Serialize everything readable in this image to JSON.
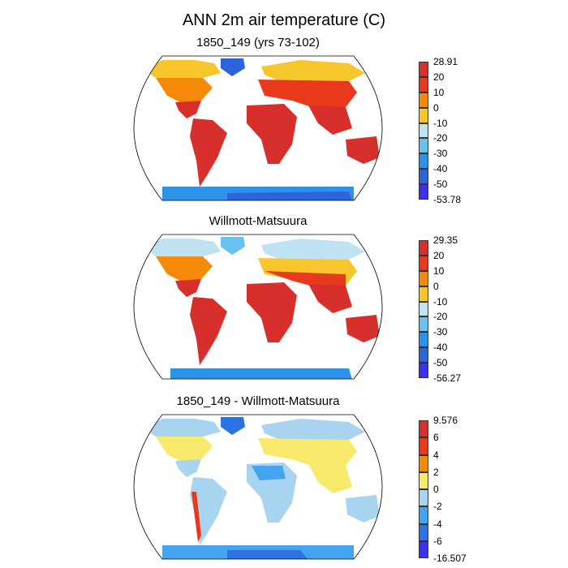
{
  "title": "ANN 2m air temperature (C)",
  "panels": [
    {
      "id": "model",
      "title": "1850_149 (yrs 73-102)",
      "colorbar": {
        "labels": [
          "28.91",
          "20",
          "10",
          "0",
          "-10",
          "-20",
          "-30",
          "-40",
          "-50",
          "-53.78"
        ],
        "colors": [
          "#d7302c",
          "#e8391d",
          "#f58a0a",
          "#f7c62d",
          "#bfe3f2",
          "#68c1ee",
          "#2c92ea",
          "#2e63de",
          "#3b2ff0"
        ]
      }
    },
    {
      "id": "obs",
      "title": "Willmott-Matsuura",
      "colorbar": {
        "labels": [
          "29.35",
          "20",
          "10",
          "0",
          "-10",
          "-20",
          "-30",
          "-40",
          "-50",
          "-56.27"
        ],
        "colors": [
          "#d7302c",
          "#e8391d",
          "#f58a0a",
          "#f7c62d",
          "#bfe3f2",
          "#68c1ee",
          "#2c92ea",
          "#2e63de",
          "#3b2ff0"
        ]
      }
    },
    {
      "id": "diff",
      "title": "1850_149 - Willmott-Matsuura",
      "colorbar": {
        "labels": [
          "9.576",
          "6",
          "4",
          "2",
          "0",
          "-2",
          "-4",
          "-6",
          "-16.507"
        ],
        "colors": [
          "#d7302c",
          "#e8391d",
          "#f58a0a",
          "#f7e96b",
          "#a9d4ef",
          "#45a4ef",
          "#2c72e4",
          "#3b2ff0"
        ]
      }
    }
  ],
  "palette": {
    "outline": "#000000",
    "ocean": "#ffffff",
    "hot": "#d7302c",
    "warm": "#e8391d",
    "mild": "#f58a0a",
    "cool": "#f7c62d",
    "cold": "#bfe3f2",
    "colder": "#68c1ee",
    "ice": "#2c92ea",
    "deep": "#2e63de",
    "extreme": "#3b2ff0",
    "diff_near0": "#a9d4ef",
    "diff_pos": "#f7e96b"
  }
}
